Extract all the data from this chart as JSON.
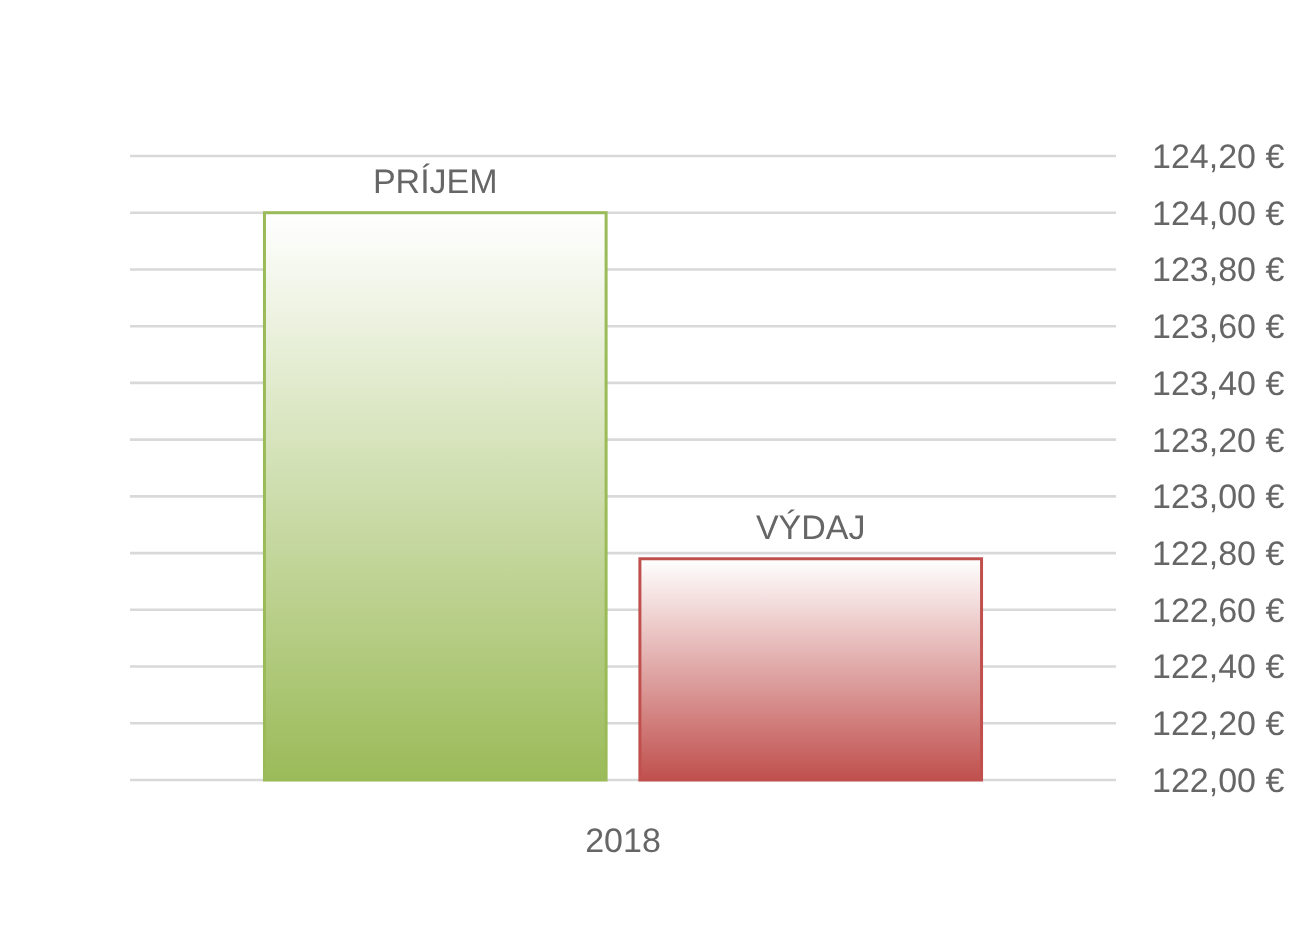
{
  "chart_data": {
    "type": "bar",
    "categories": [
      "2018"
    ],
    "series": [
      {
        "name": "PRÍJEM",
        "color": "#9bbb59",
        "values": [
          124.0
        ]
      },
      {
        "name": "VÝDAJ",
        "color": "#c0504d",
        "values": [
          122.78
        ]
      }
    ],
    "ylim": [
      122,
      124.2
    ],
    "yticks": [
      {
        "value": 122,
        "label": "122,00 €"
      },
      {
        "value": 122.2,
        "label": "122,20 €"
      },
      {
        "value": 122.4,
        "label": "122,40 €"
      },
      {
        "value": 122.6,
        "label": "122,60 €"
      },
      {
        "value": 122.8,
        "label": "122,80 €"
      },
      {
        "value": 123,
        "label": "123,00 €"
      },
      {
        "value": 123.2,
        "label": "123,20 €"
      },
      {
        "value": 123.4,
        "label": "123,40 €"
      },
      {
        "value": 123.6,
        "label": "123,60 €"
      },
      {
        "value": 123.8,
        "label": "123,80 €"
      },
      {
        "value": 124,
        "label": "124,00 €"
      },
      {
        "value": 124.2,
        "label": "124,20 €"
      }
    ],
    "grid": "y",
    "legend": false
  }
}
